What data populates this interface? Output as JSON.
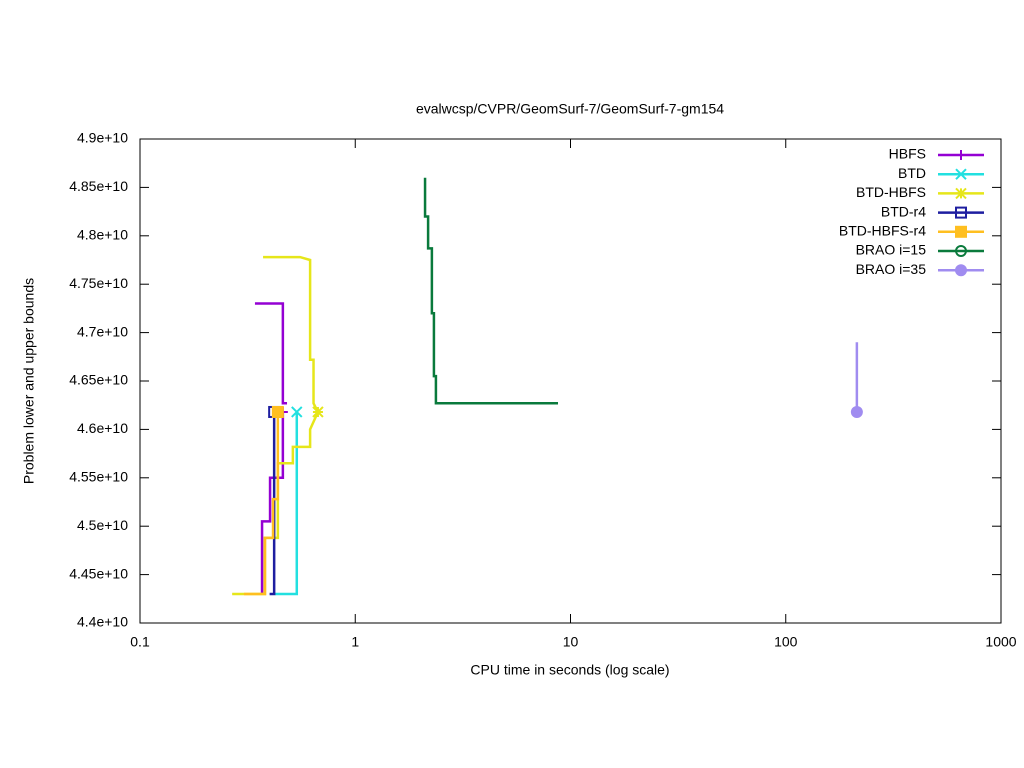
{
  "chart_data": {
    "type": "line",
    "title": "evalwcsp/CVPR/GeomSurf-7/GeomSurf-7-gm154",
    "xlabel": "CPU time in seconds (log scale)",
    "ylabel": "Problem lower and upper bounds",
    "xscale": "log",
    "legend": "top-right",
    "xlim": [
      0.1,
      1000
    ],
    "xticks": [
      0.1,
      1,
      10,
      100,
      1000
    ],
    "ylim": [
      44000000000.0,
      49000000000.0
    ],
    "yticks": [
      {
        "value": 44000000000.0,
        "label": "4.4e+10"
      },
      {
        "value": 44500000000.0,
        "label": "4.45e+10"
      },
      {
        "value": 45000000000.0,
        "label": "4.5e+10"
      },
      {
        "value": 45500000000.0,
        "label": "4.55e+10"
      },
      {
        "value": 46000000000.0,
        "label": "4.6e+10"
      },
      {
        "value": 46500000000.0,
        "label": "4.65e+10"
      },
      {
        "value": 47000000000.0,
        "label": "4.7e+10"
      },
      {
        "value": 47500000000.0,
        "label": "4.75e+10"
      },
      {
        "value": 48000000000.0,
        "label": "4.8e+10"
      },
      {
        "value": 48500000000.0,
        "label": "4.85e+10"
      },
      {
        "value": 49000000000.0,
        "label": "4.9e+10"
      }
    ],
    "series": [
      {
        "name": "HBFS",
        "color": "#9400d3",
        "marker": "plus",
        "end_marker": true,
        "x": [
          0.342,
          0.461,
          0.461,
          0.482,
          null,
          0.369,
          0.369,
          0.402,
          0.402,
          0.461,
          0.461
        ],
        "values": [
          47300000000.0,
          47300000000.0,
          46270000000.0,
          46270000000.0,
          null,
          44300000000.0,
          45050000000.0,
          45050000000.0,
          45500000000.0,
          45500000000.0,
          46180000000.0
        ]
      },
      {
        "name": "BTD",
        "color": "#22e0e0",
        "marker": "cross",
        "end_marker": true,
        "x": [
          0.424,
          0.535,
          0.535
        ],
        "values": [
          44300000000.0,
          44300000000.0,
          46180000000.0
        ]
      },
      {
        "name": "BTD-HBFS",
        "color": "#e6e61a",
        "marker": "star",
        "end_marker": true,
        "x": [
          0.373,
          0.554,
          0.617,
          0.617,
          0.64,
          0.64,
          0.671,
          null,
          0.268,
          0.38,
          0.38,
          0.437,
          0.437,
          0.513,
          0.513,
          0.617,
          0.617,
          0.671
        ],
        "values": [
          47780000000.0,
          47780000000.0,
          47750000000.0,
          46720000000.0,
          46720000000.0,
          46270000000.0,
          46180000000.0,
          null,
          44300000000.0,
          44300000000.0,
          44880000000.0,
          44880000000.0,
          45650000000.0,
          45650000000.0,
          45820000000.0,
          45820000000.0,
          46000000000.0,
          46180000000.0
        ]
      },
      {
        "name": "BTD-r4",
        "color": "#1e1ea0",
        "marker": "box",
        "end_marker": true,
        "x": [
          0.4,
          0.42,
          0.42
        ],
        "values": [
          44300000000.0,
          44300000000.0,
          46180000000.0
        ]
      },
      {
        "name": "BTD-HBFS-r4",
        "color": "#ffbf20",
        "marker": "filledbox",
        "end_marker": true,
        "x": [
          0.304,
          0.381,
          0.381,
          0.415,
          0.415,
          0.437,
          0.437
        ],
        "values": [
          44300000000.0,
          44300000000.0,
          44880000000.0,
          44880000000.0,
          45280000000.0,
          45280000000.0,
          46180000000.0
        ]
      },
      {
        "name": "BRAO i=15",
        "color": "#0a7a3c",
        "marker": "circle",
        "end_marker": false,
        "x": [
          2.11,
          2.11,
          2.18,
          2.18,
          2.27,
          2.27,
          2.32,
          2.32,
          2.37,
          2.37,
          8.75
        ],
        "values": [
          48600000000.0,
          48200000000.0,
          48200000000.0,
          47870000000.0,
          47870000000.0,
          47200000000.0,
          47200000000.0,
          46550000000.0,
          46550000000.0,
          46270000000.0,
          46270000000.0
        ]
      },
      {
        "name": "BRAO i=35",
        "color": "#a08cf0",
        "marker": "filledcircle",
        "end_marker": true,
        "x": [
          214,
          214
        ],
        "values": [
          46900000000.0,
          46180000000.0
        ]
      }
    ]
  }
}
